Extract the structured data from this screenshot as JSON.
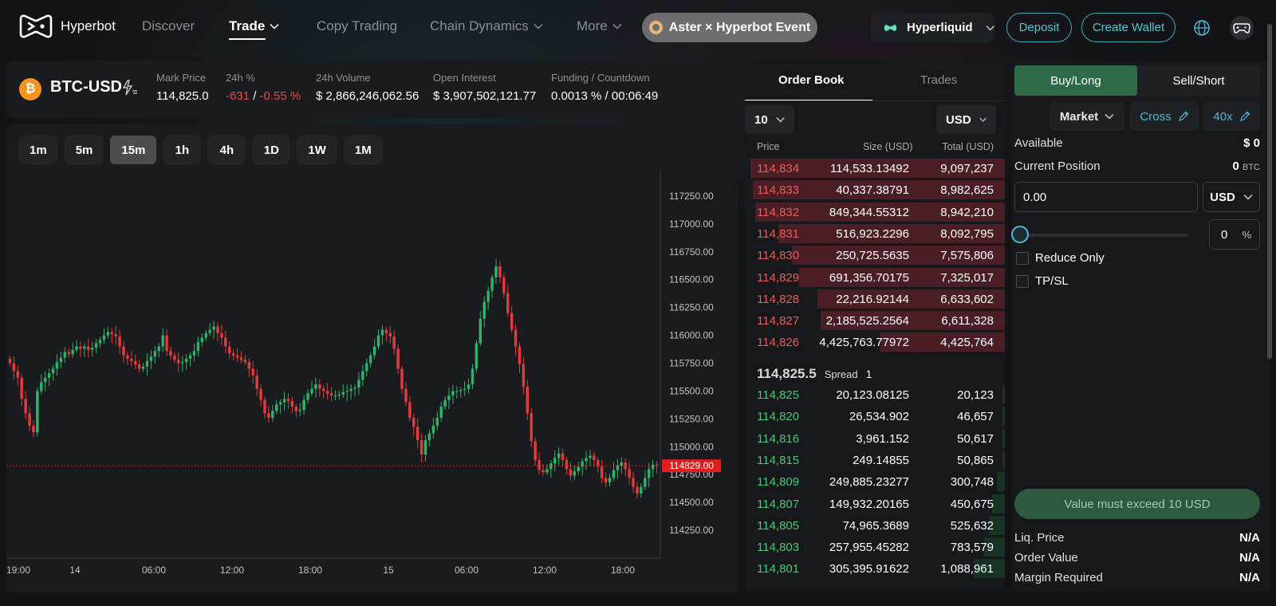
{
  "nav": {
    "logo_text": "Hyperbot",
    "discover": "Discover",
    "trade": "Trade",
    "copy_trading": "Copy Trading",
    "chain_dynamics": "Chain Dynamics",
    "more": "More",
    "event": "Aster × Hyperbot Event",
    "network": "Hyperliquid",
    "deposit": "Deposit",
    "create_wallet": "Create Wallet",
    "globe_icon": "globe-icon",
    "gamepad_icon": "gamepad-icon"
  },
  "market": {
    "symbol": "BTC-USD",
    "coin_glyph": "₿",
    "mark_price_label": "Mark Price",
    "mark_price": "114,825.0",
    "change_label": "24h %",
    "change_abs": "-631",
    "change_sep": "/",
    "change_pct": "-0.55 %",
    "volume_label": "24h Volume",
    "volume": "$ 2,866,246,062.56",
    "oi_label": "Open Interest",
    "oi": "$ 3,907,502,121.77",
    "funding_label": "Funding / Countdown",
    "funding": "0.0013 % / 00:06:49"
  },
  "timeframes": [
    "1m",
    "5m",
    "15m",
    "1h",
    "4h",
    "1D",
    "1W",
    "1M"
  ],
  "active_timeframe": "15m",
  "colors": {
    "up": "#2fb36b",
    "down": "#e23b3b",
    "accent": "#4fb8d4",
    "buy": "#2e6a45",
    "price_tag": "#e01e1e"
  },
  "chart_data": {
    "type": "candlestick",
    "current_price_label": "114829.00",
    "current_price": 114829,
    "y_ticks": [
      "117250.00",
      "117000.00",
      "116750.00",
      "116500.00",
      "116250.00",
      "116000.00",
      "115750.00",
      "115500.00",
      "115250.00",
      "115000.00",
      "114750.00",
      "114500.00",
      "114250.00"
    ],
    "x_ticks": [
      "19:00",
      "14",
      "06:00",
      "12:00",
      "18:00",
      "15",
      "06:00",
      "12:00",
      "18:00"
    ],
    "ylim": [
      114000,
      117450
    ],
    "closes": [
      115750,
      115680,
      115620,
      115430,
      115300,
      115190,
      115130,
      115500,
      115580,
      115620,
      115660,
      115700,
      115760,
      115800,
      115850,
      115830,
      115870,
      115900,
      115880,
      115900,
      115870,
      115890,
      115930,
      115960,
      116000,
      116030,
      116010,
      115990,
      115900,
      115820,
      115790,
      115770,
      115740,
      115700,
      115720,
      115770,
      115810,
      115860,
      115900,
      116000,
      115860,
      115820,
      115780,
      115750,
      115760,
      115790,
      115820,
      115860,
      115940,
      115980,
      116020,
      116050,
      116080,
      116020,
      115980,
      115900,
      115840,
      115820,
      115800,
      115780,
      115760,
      115700,
      115640,
      115520,
      115420,
      115300,
      115260,
      115320,
      115380,
      115400,
      115430,
      115410,
      115360,
      115320,
      115330,
      115420,
      115480,
      115520,
      115560,
      115520,
      115500,
      115480,
      115460,
      115460,
      115470,
      115490,
      115500,
      115520,
      115530,
      115600,
      115680,
      115750,
      115820,
      115900,
      116000,
      116050,
      116020,
      115990,
      115880,
      115700,
      115520,
      115400,
      115260,
      115180,
      115060,
      114930,
      115060,
      115120,
      115190,
      115260,
      115360,
      115420,
      115460,
      115500,
      115500,
      115510,
      115520,
      115560,
      115700,
      115930,
      116150,
      116300,
      116400,
      116520,
      116620,
      116520,
      116380,
      116200,
      116050,
      115900,
      115740,
      115540,
      115300,
      115050,
      114880,
      114790,
      114770,
      114800,
      114850,
      114900,
      114940,
      114880,
      114800,
      114740,
      114780,
      114820,
      114870,
      114900,
      114920,
      114880,
      114820,
      114720,
      114680,
      114720,
      114790,
      114830,
      114860,
      114800,
      114720,
      114640,
      114580,
      114640,
      114720,
      114800,
      114840,
      114829
    ]
  },
  "orderbook": {
    "tab_book": "Order Book",
    "tab_trades": "Trades",
    "depth": "10",
    "unit": "USD",
    "col_price": "Price",
    "col_size": "Size (USD)",
    "col_total": "Total (USD)",
    "asks": [
      {
        "price": "114,834",
        "size": "114,533.13492",
        "total": "9,097,237",
        "depth": 0.98
      },
      {
        "price": "114,833",
        "size": "40,337.38791",
        "total": "8,982,625",
        "depth": 0.97
      },
      {
        "price": "114,832",
        "size": "849,344.55312",
        "total": "8,942,210",
        "depth": 0.96
      },
      {
        "price": "114,831",
        "size": "516,923.2296",
        "total": "8,092,795",
        "depth": 0.87
      },
      {
        "price": "114,830",
        "size": "250,725.5635",
        "total": "7,575,806",
        "depth": 0.82
      },
      {
        "price": "114,829",
        "size": "691,356.70175",
        "total": "7,325,017",
        "depth": 0.79
      },
      {
        "price": "114,828",
        "size": "22,216.92144",
        "total": "6,633,602",
        "depth": 0.72
      },
      {
        "price": "114,827",
        "size": "2,185,525.2564",
        "total": "6,611,328",
        "depth": 0.71
      },
      {
        "price": "114,826",
        "size": "4,425,763.77972",
        "total": "4,425,764",
        "depth": 0.48
      }
    ],
    "mid_price": "114,825.5",
    "spread_label": "Spread",
    "spread": "1",
    "bids": [
      {
        "price": "114,825",
        "size": "20,123.08125",
        "total": "20,123",
        "depth": 0.01
      },
      {
        "price": "114,820",
        "size": "26,534.902",
        "total": "46,657",
        "depth": 0.01
      },
      {
        "price": "114,816",
        "size": "3,961.152",
        "total": "50,617",
        "depth": 0.01
      },
      {
        "price": "114,815",
        "size": "249.14855",
        "total": "50,865",
        "depth": 0.01
      },
      {
        "price": "114,809",
        "size": "249,885.23277",
        "total": "300,748",
        "depth": 0.03
      },
      {
        "price": "114,807",
        "size": "149,932.20165",
        "total": "450,675",
        "depth": 0.05
      },
      {
        "price": "114,805",
        "size": "74,965.3689",
        "total": "525,632",
        "depth": 0.06
      },
      {
        "price": "114,803",
        "size": "257,955.45282",
        "total": "783,579",
        "depth": 0.08
      },
      {
        "price": "114,801",
        "size": "305,395.91622",
        "total": "1,088,961",
        "depth": 0.12
      }
    ]
  },
  "trade": {
    "buy_tab": "Buy/Long",
    "sell_tab": "Sell/Short",
    "order_type": "Market",
    "margin_mode": "Cross",
    "leverage": "40x",
    "available_label": "Available",
    "available_value": "$ 0",
    "position_label": "Current Position",
    "position_value": "0",
    "position_unit": "BTC",
    "amount_value": "0.00",
    "amount_unit": "USD",
    "percent_value": "0",
    "percent_unit": "%",
    "slider_level": 0,
    "reduce_only": "Reduce Only",
    "tpsl": "TP/SL",
    "submit": "Value must exceed 10 USD",
    "liq_label": "Liq. Price",
    "liq_value": "N/A",
    "order_value_label": "Order Value",
    "order_value": "N/A",
    "margin_label": "Margin Required",
    "margin_value": "N/A"
  }
}
